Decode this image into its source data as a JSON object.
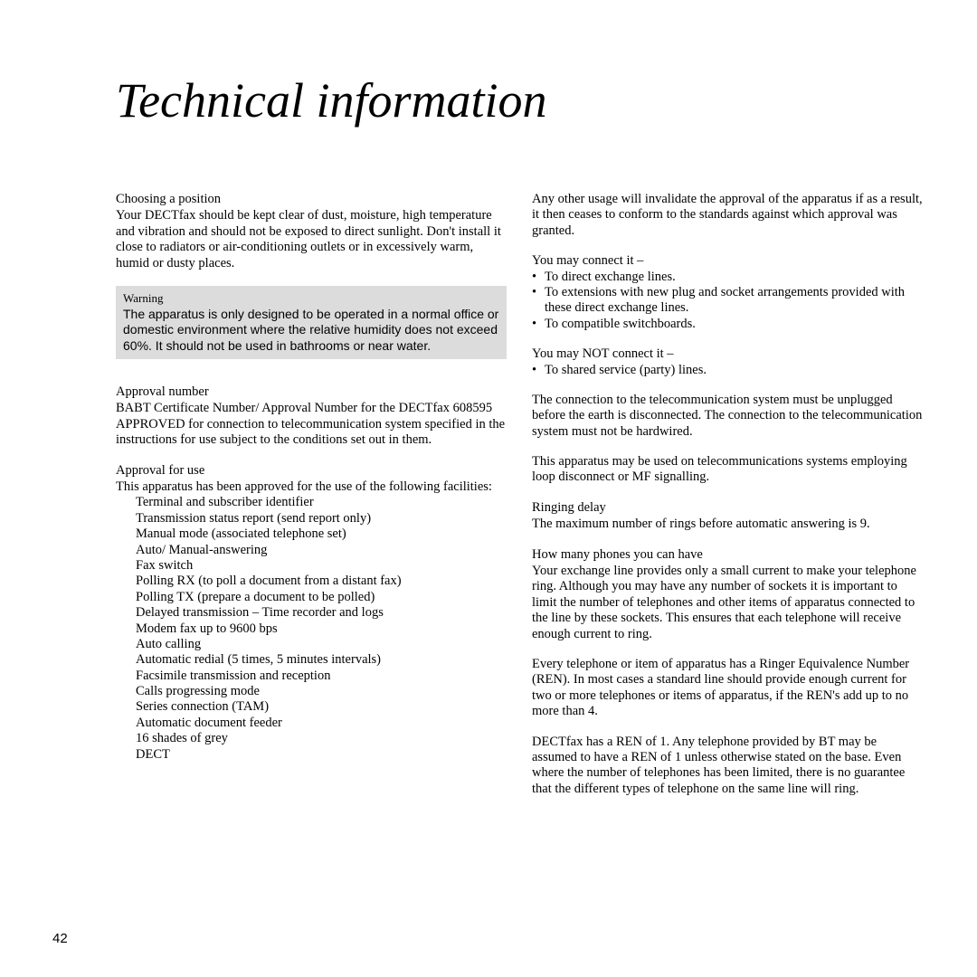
{
  "page_number": "42",
  "title": "Technical information",
  "left": {
    "choosing_head": "Choosing a position",
    "choosing_body": "Your DECTfax should be kept clear of dust, moisture, high temperature and vibration and should not be exposed to direct sunlight. Don't install it close to radiators or air-conditioning outlets or in excessively warm, humid or dusty places.",
    "warning_head": "Warning",
    "warning_body": "The apparatus is only designed to be operated in a normal office or domestic environment where the relative humidity does not exceed 60%. It should not be used in bathrooms or near water.",
    "approval_num_head": "Approval number",
    "approval_num_body": "BABT Certificate Number/ Approval Number for the DECTfax 608595 APPROVED for connection to telecommunication system specified in the instructions for use subject to the conditions set out in them.",
    "approval_use_head": "Approval for use",
    "approval_use_intro": "This apparatus has been approved for the use of the following facilities:",
    "facilities": [
      "Terminal and subscriber identifier",
      "Transmission status report (send report only)",
      "Manual mode (associated telephone set)",
      "Auto/ Manual-answering",
      "Fax switch",
      "Polling RX (to poll a document from a distant fax)",
      "Polling TX (prepare a document to be polled)",
      "Delayed transmission – Time recorder and logs",
      "Modem fax up to 9600 bps",
      "Auto calling",
      "Automatic redial (5 times, 5 minutes intervals)",
      "Facsimile transmission and reception",
      "Calls progressing mode",
      "Series connection (TAM)",
      "Automatic document feeder",
      "16 shades of grey",
      "DECT"
    ]
  },
  "right": {
    "any_other": "Any other usage will invalidate the approval of the apparatus if as a result, it then ceases to conform to the standards against which approval was granted.",
    "may_connect_head": "You may connect it –",
    "may_connect": [
      "To direct exchange lines.",
      "To extensions with new plug and socket arrangements provided with these direct exchange lines.",
      "To compatible switchboards."
    ],
    "may_not_head": "You may NOT connect it –",
    "may_not": [
      "To shared service (party) lines."
    ],
    "connection_para": "The connection to the telecommunication system must be unplugged before the earth is disconnected. The connection to the telecommunication system must not be hardwired.",
    "loop_para": "This apparatus may be used on telecommunications systems employing loop disconnect or MF signalling.",
    "ringing_head": "Ringing delay",
    "ringing_body": "The maximum number of rings before automatic answering is 9.",
    "phones_head": "How many phones you can have",
    "phones_p1": "Your exchange line provides only a small current to make your telephone ring. Although you may have any number of sockets it is important to limit the number of telephones and other items of apparatus connected to the line by these sockets. This ensures that each telephone will receive enough current to ring.",
    "phones_p2": "Every telephone or item of apparatus has a Ringer Equivalence Number (REN). In most cases a standard line should provide enough current for two or more telephones or items of apparatus, if the REN's add up to no more than 4.",
    "phones_p3": "DECTfax has a REN of 1. Any telephone provided by BT may be assumed to have a REN of 1 unless otherwise stated on the base. Even where the number of telephones has been limited, there is no guarantee that the different types of telephone on the same line will ring."
  }
}
